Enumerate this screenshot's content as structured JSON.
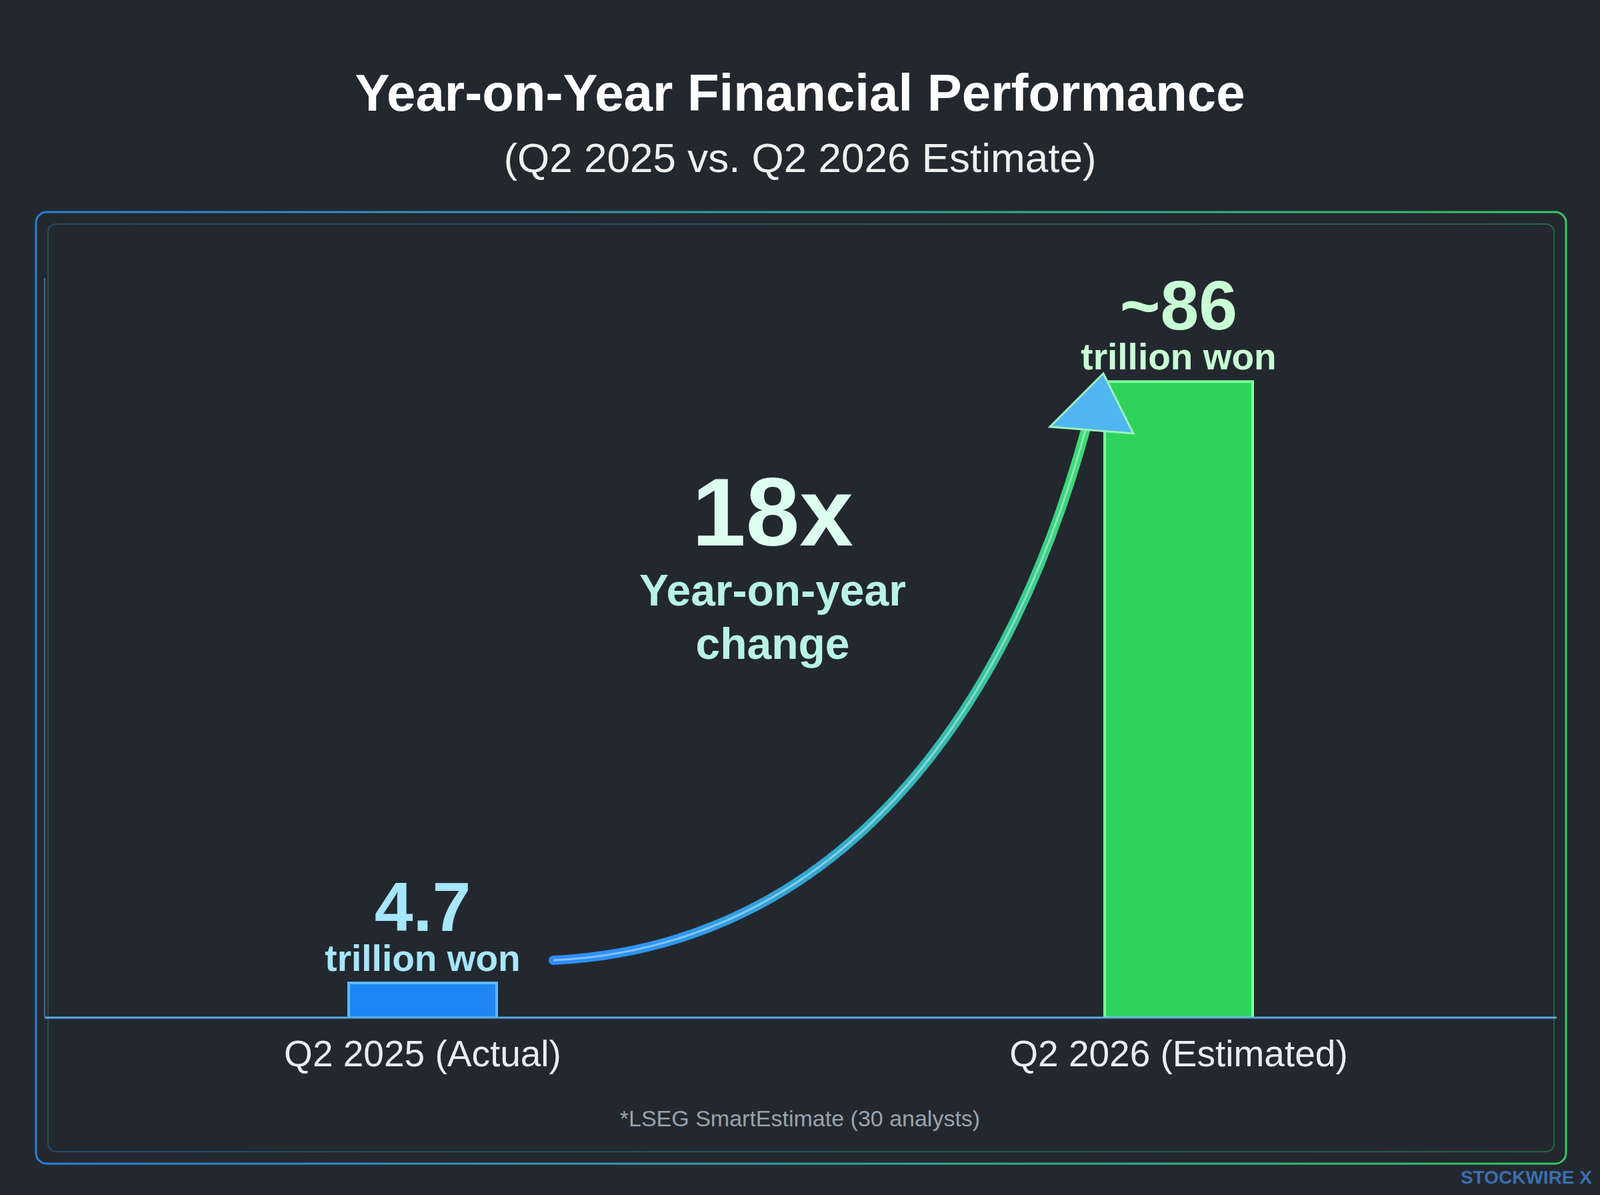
{
  "chart_data": {
    "type": "bar",
    "title": "Year-on-Year Financial Performance",
    "subtitle": "(Q2 2025 vs. Q2 2026 Estimate)",
    "categories": [
      "Q2 2025 (Actual)",
      "Q2 2026 (Estimated)"
    ],
    "values": [
      4.7,
      86
    ],
    "value_labels": [
      "4.7",
      "~86"
    ],
    "unit": "trillion won",
    "colors": [
      "#1f86f5",
      "#2fd35c"
    ],
    "ylim": [
      0,
      100
    ],
    "tick_labels": "x",
    "data_labels": true,
    "grid": false,
    "annotation": {
      "label": "18x",
      "text": "Year-on-year change"
    },
    "note": "*LSEG SmartEstimate (30 analysts)",
    "source": "STOCKWIRE X"
  }
}
